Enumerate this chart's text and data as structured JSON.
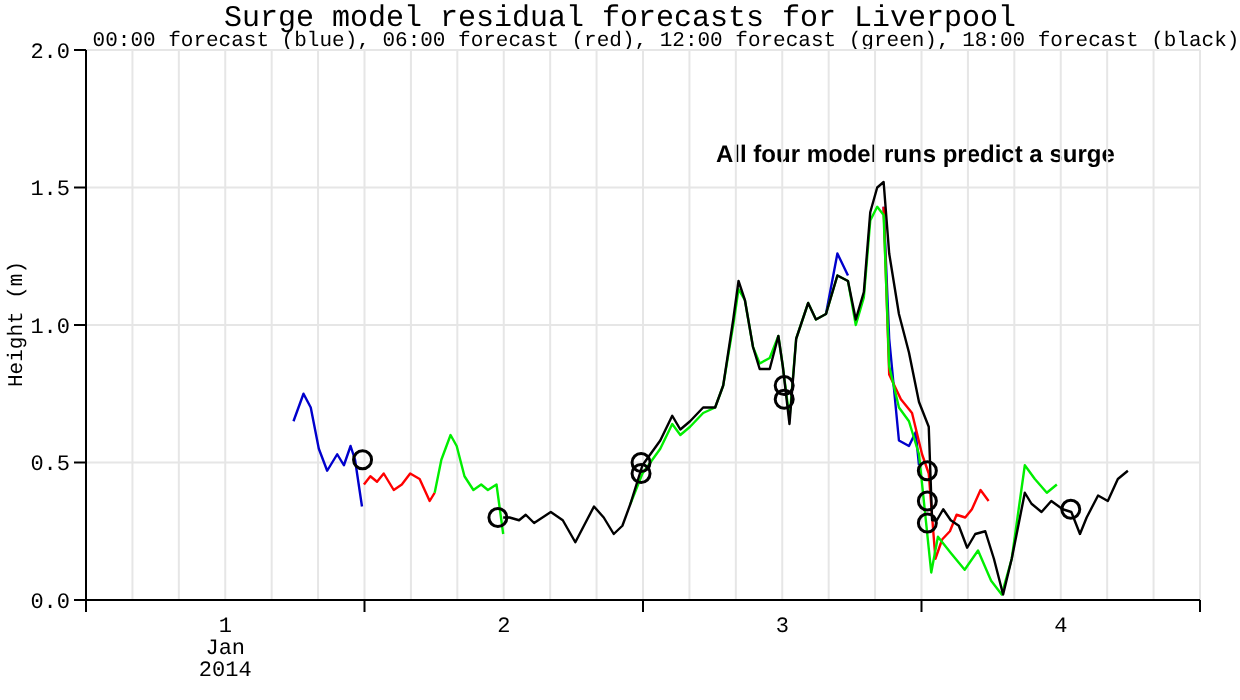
{
  "chart_data": {
    "type": "line",
    "title": "Surge model residual forecasts for Liverpool",
    "subtitle": "00:00 forecast (blue), 06:00 forecast (red), 12:00 forecast (green), 18:00 forecast (black)",
    "ylabel": "Height (m)",
    "annotations": [
      "All four model runs predict a surge"
    ],
    "xlim": [
      0,
      4
    ],
    "ylim": [
      0,
      2
    ],
    "xticks": [
      {
        "value": 0,
        "label": null
      },
      {
        "value": 0.1667,
        "label": null
      },
      {
        "value": 0.3333,
        "label": null
      },
      {
        "value": 0.5,
        "label": "1\nJan\n2014"
      },
      {
        "value": 0.6667,
        "label": null
      },
      {
        "value": 0.8333,
        "label": null
      },
      {
        "value": 1,
        "label": null
      },
      {
        "value": 1.1667,
        "label": null
      },
      {
        "value": 1.3333,
        "label": null
      },
      {
        "value": 1.5,
        "label": "2"
      },
      {
        "value": 1.6667,
        "label": null
      },
      {
        "value": 1.8333,
        "label": null
      },
      {
        "value": 2,
        "label": null
      },
      {
        "value": 2.1667,
        "label": null
      },
      {
        "value": 2.3333,
        "label": null
      },
      {
        "value": 2.5,
        "label": "3"
      },
      {
        "value": 2.6667,
        "label": null
      },
      {
        "value": 2.8333,
        "label": null
      },
      {
        "value": 3,
        "label": null
      },
      {
        "value": 3.1667,
        "label": null
      },
      {
        "value": 3.3333,
        "label": null
      },
      {
        "value": 3.5,
        "label": "4"
      },
      {
        "value": 3.6667,
        "label": null
      },
      {
        "value": 3.8333,
        "label": null
      },
      {
        "value": 4,
        "label": null
      }
    ],
    "yticks": [
      {
        "value": 0,
        "label": "0.0"
      },
      {
        "value": 0.5,
        "label": "0.5"
      },
      {
        "value": 1,
        "label": "1.0"
      },
      {
        "value": 1.5,
        "label": "1.5"
      },
      {
        "value": 2,
        "label": "2.0"
      }
    ],
    "grid": true,
    "series": [
      {
        "color": "#0000cc",
        "x": [
          0.745,
          0.781,
          0.807,
          0.836,
          0.866,
          0.902,
          0.926,
          0.95,
          0.966,
          0.991,
          1.5,
          2.657,
          2.698,
          2.736,
          2.8,
          2.864,
          2.884,
          2.919,
          2.955,
          2.979,
          2.991
        ],
        "values": [
          0.65,
          0.75,
          0.7,
          0.55,
          0.47,
          0.53,
          0.49,
          0.56,
          0.51,
          0.34,
          null,
          1.04,
          1.26,
          1.18,
          null,
          1.43,
          0.95,
          0.58,
          0.56,
          0.61,
          0.49
        ]
      },
      {
        "color": "#ff0000",
        "x": [
          0.998,
          1.021,
          1.045,
          1.069,
          1.105,
          1.134,
          1.164,
          1.198,
          1.234,
          1.252,
          2.5,
          2.864,
          2.884,
          2.926,
          2.966,
          3.002,
          3.026,
          3.05,
          3.074,
          3.102,
          3.126,
          3.157,
          3.181,
          3.212,
          3.241
        ],
        "values": [
          0.42,
          0.45,
          0.43,
          0.46,
          0.4,
          0.42,
          0.46,
          0.44,
          0.36,
          0.39,
          null,
          1.43,
          0.82,
          0.73,
          0.68,
          0.53,
          0.46,
          0.15,
          0.22,
          0.25,
          0.31,
          0.3,
          0.33,
          0.4,
          0.36
        ]
      },
      {
        "color": "#00ee00",
        "x": [
          1.252,
          1.276,
          1.309,
          1.331,
          1.359,
          1.391,
          1.419,
          1.443,
          1.474,
          1.498,
          1.521,
          1.555,
          1.579,
          1.609,
          1.669,
          1.712,
          1.757,
          1.793,
          1.824,
          1.859,
          1.895,
          1.926,
          1.955,
          1.998,
          2.062,
          2.105,
          2.134,
          2.169,
          2.216,
          2.259,
          2.288,
          2.324,
          2.343,
          2.366,
          2.395,
          2.419,
          2.455,
          2.486,
          2.502,
          2.526,
          2.55,
          2.593,
          2.621,
          2.657,
          2.698,
          2.736,
          2.764,
          2.793,
          2.816,
          2.841,
          2.864,
          2.884,
          2.919,
          2.955,
          2.991,
          3.035,
          3.059,
          3.106,
          3.155,
          3.203,
          3.25,
          3.288,
          3.324,
          3.371,
          3.407,
          3.45,
          3.486
        ],
        "values": [
          0.39,
          0.51,
          0.6,
          0.56,
          0.45,
          0.4,
          0.42,
          0.4,
          0.42,
          0.24,
          null,
          null,
          null,
          null,
          null,
          null,
          null,
          null,
          null,
          null,
          null,
          null,
          0.35,
          0.46,
          0.55,
          0.64,
          0.6,
          0.63,
          0.68,
          0.7,
          0.78,
          1.0,
          1.13,
          1.09,
          0.92,
          0.86,
          0.88,
          0.96,
          0.85,
          0.66,
          0.95,
          1.08,
          1.02,
          1.04,
          1.18,
          1.16,
          1.0,
          1.1,
          1.38,
          1.43,
          1.4,
          0.85,
          0.7,
          0.65,
          0.53,
          0.1,
          0.23,
          0.17,
          0.11,
          0.18,
          0.07,
          0.02,
          0.15,
          0.49,
          0.44,
          0.39,
          0.42
        ]
      },
      {
        "color": "#000000",
        "x": [
          1.498,
          1.521,
          1.555,
          1.579,
          1.609,
          1.669,
          1.712,
          1.757,
          1.793,
          1.824,
          1.859,
          1.895,
          1.926,
          1.955,
          1.998,
          2.062,
          2.105,
          2.134,
          2.169,
          2.216,
          2.259,
          2.288,
          2.324,
          2.343,
          2.366,
          2.395,
          2.419,
          2.455,
          2.486,
          2.502,
          2.526,
          2.55,
          2.593,
          2.621,
          2.657,
          2.698,
          2.736,
          2.764,
          2.793,
          2.816,
          2.841,
          2.864,
          2.884,
          2.919,
          2.955,
          2.991,
          3.026,
          3.038,
          3.055,
          3.078,
          3.105,
          3.134,
          3.164,
          3.193,
          3.229,
          3.26,
          3.293,
          3.324,
          3.371,
          3.395,
          3.431,
          3.466,
          3.507,
          3.538,
          3.569,
          3.593,
          3.634,
          3.669,
          3.705,
          3.741
        ],
        "values": [
          0.3,
          0.3,
          0.29,
          0.31,
          0.28,
          0.32,
          0.29,
          0.21,
          0.28,
          0.34,
          0.3,
          0.24,
          0.27,
          0.35,
          0.49,
          0.58,
          0.67,
          0.62,
          0.65,
          0.7,
          0.7,
          0.78,
          1.02,
          1.16,
          1.09,
          0.92,
          0.84,
          0.84,
          0.96,
          0.85,
          0.64,
          0.95,
          1.08,
          1.02,
          1.04,
          1.18,
          1.16,
          1.02,
          1.12,
          1.41,
          1.5,
          1.52,
          1.26,
          1.04,
          0.9,
          0.72,
          0.63,
          0.29,
          0.29,
          0.33,
          0.29,
          0.27,
          0.19,
          0.24,
          0.25,
          0.15,
          0.02,
          0.15,
          0.39,
          0.35,
          0.32,
          0.36,
          0.33,
          0.32,
          0.24,
          0.3,
          0.38,
          0.36,
          0.44,
          0.47
        ]
      },
      {
        "type": "scatter",
        "marker": "circle",
        "color": "#000000",
        "x": [
          0.993,
          1.479,
          1.993,
          1.993,
          2.507,
          2.507,
          3.021,
          3.021,
          3.021,
          3.536
        ],
        "values": [
          0.51,
          0.3,
          0.5,
          0.46,
          0.78,
          0.73,
          0.47,
          0.36,
          0.28,
          0.33
        ]
      }
    ]
  }
}
